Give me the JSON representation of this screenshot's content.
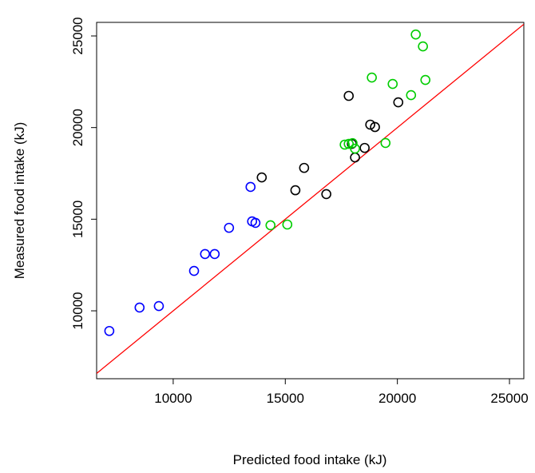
{
  "chart_data": {
    "type": "scatter",
    "x_label": "Predicted food intake (kJ)",
    "y_label": "Measured food intake (kJ)",
    "xlim": [
      6584,
      25640
    ],
    "ylim": [
      6295,
      25741
    ],
    "xticks": [
      10000,
      15000,
      20000,
      25000
    ],
    "yticks": [
      10000,
      15000,
      20000,
      25000
    ],
    "reference_line": {
      "intercept": 0,
      "slope": 1,
      "color": "#ff0000"
    },
    "series": [
      {
        "color": "#0000ff",
        "x": [
          7150,
          8500,
          9360,
          10930,
          11420,
          11850,
          12490,
          13450,
          13520,
          13670
        ],
        "values": [
          8900,
          10180,
          10260,
          12180,
          13100,
          13100,
          14530,
          16760,
          14880,
          14800
        ]
      },
      {
        "color": "#000000",
        "x": [
          17830,
          13950,
          15840,
          15450,
          16830,
          18790,
          19000,
          20040,
          18540,
          18110,
          17970
        ],
        "values": [
          21730,
          17280,
          17800,
          16580,
          16370,
          20160,
          20030,
          21380,
          18890,
          18370,
          19110
        ]
      },
      {
        "color": "#00cd00",
        "x": [
          20820,
          21140,
          18860,
          19790,
          20610,
          21250,
          17650,
          17830,
          18000,
          18110,
          19470,
          14340,
          15090
        ],
        "values": [
          25080,
          24430,
          22730,
          22380,
          21770,
          22600,
          19070,
          19110,
          19150,
          18850,
          19160,
          14670,
          14710
        ]
      }
    ]
  }
}
